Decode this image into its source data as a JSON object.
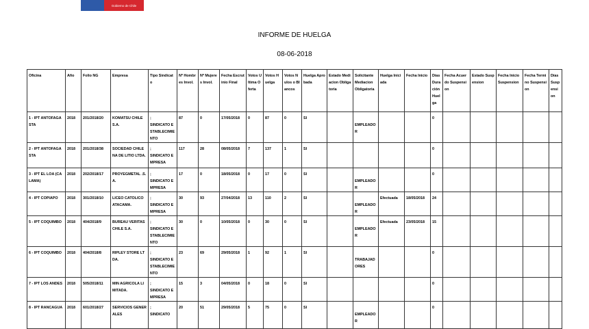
{
  "logo": {
    "text": "Gobierno de Chile",
    "colors": {
      "blue": "#2e5aa8",
      "red": "#d6282f"
    }
  },
  "title": "INFORME DE HUELGA",
  "date": "08-06-2018",
  "columns": [
    "Oficina",
    "Año",
    "Folio NG",
    "Empresa",
    "Tipo Sindicato",
    "Nº Hombres Invol.",
    "Nº Mujeres Invol.",
    "Fecha Escrutinio Final",
    "Votos Ultima Oferta",
    "Votos Huelga",
    "Votos Nulos o Blancos",
    "Huelga Aprobada",
    "Estado Mediacion Obligatoria",
    "Solicitante Mediacion Obligatoria",
    "Huelga Iniciada",
    "Fecha Inicio",
    "Días Duración Huelga",
    "Fecha Acuerdo Suspension",
    "Estado Suspension",
    "Fecha Inicio Suspension",
    "Fecha Termino Suspension",
    "Días Suspension"
  ],
  "rows": [
    [
      "1 - IPT ANTOFAGASTA",
      "2018",
      "201/2018/20",
      "KOMATSU CHILE S.A.",
      ";\nSINDICATO ESTABLECIMIENTO",
      "87",
      "0",
      "17/05/2018",
      "0",
      "87",
      "0",
      "SI",
      "",
      "EMPLEADOR",
      "",
      "",
      "0",
      "",
      "",
      "",
      "",
      ""
    ],
    [
      "2 - IPT ANTOFAGASTA",
      "2018",
      "201/2018/38",
      "SOCIEDAD CHILENA DE LITIO LTDA.",
      ";\nSINDICATO EMPRESA",
      "117",
      "28",
      "08/05/2018",
      "7",
      "137",
      "1",
      "SI",
      "",
      "",
      "",
      "",
      "0",
      "",
      "",
      "",
      "",
      ""
    ],
    [
      "3 - IPT EL LOA (CALAMA)",
      "2018",
      "202/2018/17",
      "PROYEGMETAL .S.A.",
      ";\nSINDICATO EMPRESA",
      "17",
      "0",
      "18/05/2018",
      "0",
      "17",
      "0",
      "SI",
      "",
      "EMPLEADOR",
      "",
      "",
      "0",
      "",
      "",
      "",
      "",
      ""
    ],
    [
      "4 - IPT COPIAPO",
      "2018",
      "301/2018/10",
      "LICEO CATOLICO ATACAMA.",
      ";\nSINDICATO EMPRESA",
      "30",
      "93",
      "27/04/2018",
      "13",
      "110",
      "2",
      "SI",
      "",
      "EMPLEADOR",
      "Efectuada",
      "18/05/2018",
      "24",
      "",
      "",
      "",
      "",
      ""
    ],
    [
      "5 - IPT COQUIMBO",
      "2018",
      "404/2018/9",
      "BUREAU VERITAS CHILE S.A.",
      ";\nSINDICATO ESTABLECIMIENTO",
      "30",
      "0",
      "10/05/2018",
      "0",
      "30",
      "0",
      "SI",
      "",
      "EMPLEADOR",
      "Efectuada",
      "23/05/2018",
      "15",
      "",
      "",
      "",
      "",
      ""
    ],
    [
      "6 - IPT COQUIMBO",
      "2018",
      "404/2018/8",
      "RIPLEY STORE LTDA.",
      ";\nSINDICATO ESTABLECIMIENTO",
      "23",
      "69",
      "29/05/2018",
      "1",
      "92",
      "1",
      "SI",
      "",
      "TRABAJADORES",
      "",
      "",
      "0",
      "",
      "",
      "",
      "",
      ""
    ],
    [
      "7 - IPT LOS ANDES",
      "2018",
      "505/2018/11",
      "MIN AGRICOLA LIMITADA.",
      ";\nSINDICATO EMPRESA",
      "15",
      "3",
      "04/05/2018",
      "0",
      "18",
      "0",
      "SI",
      "",
      "",
      "",
      "",
      "0",
      "",
      "",
      "",
      "",
      ""
    ],
    [
      "8 - IPT RANCAGUA",
      "2018",
      "601/2018/27",
      "SERVICIOS GENERALES",
      ";\nSINDICATO",
      "20",
      "51",
      "29/05/2018",
      "5",
      "75",
      "0",
      "SI",
      "",
      "EMPLEADOR",
      "",
      "",
      "0",
      "",
      "",
      "",
      "",
      ""
    ]
  ]
}
